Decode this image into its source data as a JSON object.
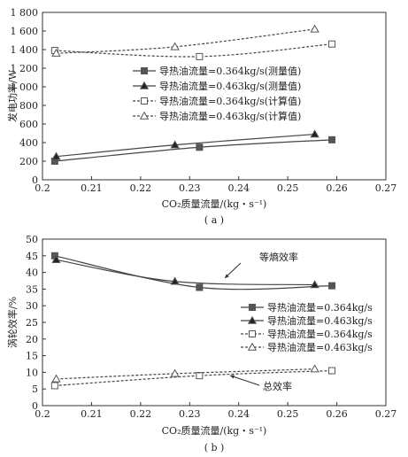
{
  "chart_data": [
    {
      "type": "line",
      "panel_label": "( a )",
      "xlabel": "CO₂质量流量/(kg・s⁻¹)",
      "ylabel": "发电功率/W",
      "xlim": [
        0.2,
        0.27
      ],
      "ylim": [
        0,
        1800
      ],
      "x_ticks": [
        "0.2",
        "0.21",
        "0.22",
        "0.23",
        "0.24",
        "0.25",
        "0.26",
        "0.27"
      ],
      "y_ticks": [
        "0",
        "200",
        "400",
        "600",
        "800",
        "1 000",
        "1 200",
        "1 400",
        "1 600",
        "1 800"
      ],
      "grid": false,
      "legend_position": "center-right",
      "series": [
        {
          "name": "导热油流量=0.364kg/s(测量值)",
          "marker": "filled-square",
          "line": "solid",
          "x": [
            0.2025,
            0.232,
            0.259
          ],
          "y": [
            200,
            350,
            430
          ]
        },
        {
          "name": "导热油流量=0.463kg/s(测量值)",
          "marker": "filled-triangle",
          "line": "solid",
          "x": [
            0.2028,
            0.227,
            0.2555
          ],
          "y": [
            250,
            375,
            490
          ]
        },
        {
          "name": "导热油流量=0.364kg/s(计算值)",
          "marker": "open-square",
          "line": "dashed",
          "x": [
            0.2025,
            0.232,
            0.259
          ],
          "y": [
            1390,
            1325,
            1460
          ]
        },
        {
          "name": "导热油流量=0.463kg/s(计算值)",
          "marker": "open-triangle",
          "line": "dashed",
          "x": [
            0.2028,
            0.227,
            0.2555
          ],
          "y": [
            1360,
            1430,
            1620
          ]
        }
      ]
    },
    {
      "type": "line",
      "panel_label": "( b )",
      "xlabel": "CO₂质量流量/(kg・s⁻¹)",
      "ylabel": "涡轮效率/%",
      "xlim": [
        0.2,
        0.27
      ],
      "ylim": [
        0,
        50
      ],
      "x_ticks": [
        "0.2",
        "0.21",
        "0.22",
        "0.23",
        "0.24",
        "0.25",
        "0.26",
        "0.27"
      ],
      "y_ticks": [
        "0",
        "5",
        "10",
        "15",
        "20",
        "25",
        "30",
        "35",
        "40",
        "45",
        "50"
      ],
      "grid": false,
      "legend_position": "right",
      "annotations": [
        "等熵效率",
        "总效率"
      ],
      "series": [
        {
          "name": "导热油流量=0.364kg/s",
          "marker": "filled-square",
          "line": "solid",
          "x": [
            0.2025,
            0.232,
            0.259
          ],
          "y": [
            45,
            35.5,
            36
          ]
        },
        {
          "name": "导热油流量=0.463kg/s",
          "marker": "filled-triangle",
          "line": "solid",
          "x": [
            0.2028,
            0.227,
            0.2555
          ],
          "y": [
            43.8,
            37.3,
            36.3
          ]
        },
        {
          "name": "导热油流量=0.364kg/s",
          "marker": "open-square",
          "line": "dashed",
          "x": [
            0.2025,
            0.232,
            0.259
          ],
          "y": [
            6,
            9,
            10.5
          ]
        },
        {
          "name": "导热油流量=0.463kg/s",
          "marker": "open-triangle",
          "line": "dashed",
          "x": [
            0.2028,
            0.227,
            0.2555
          ],
          "y": [
            8,
            9.6,
            11
          ]
        }
      ]
    }
  ]
}
